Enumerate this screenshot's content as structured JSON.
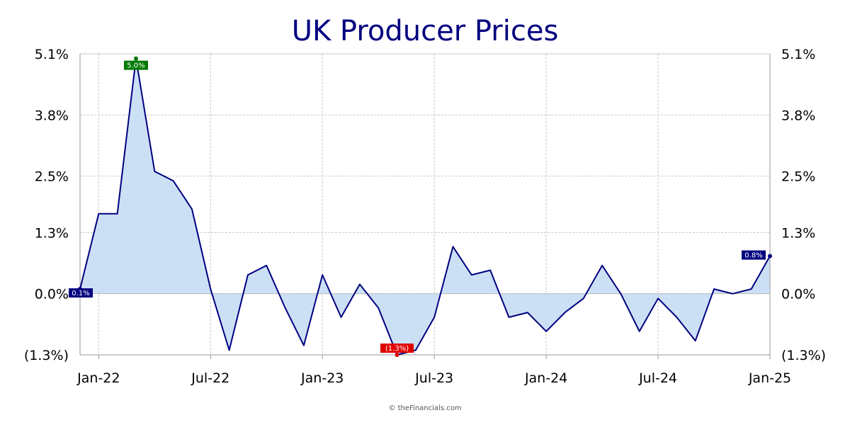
{
  "chart_data": {
    "type": "area",
    "title": "UK Producer Prices",
    "xlabel": "",
    "ylabel": "",
    "credit": "© theFinancials.com",
    "ylim": [
      -1.3,
      5.1
    ],
    "y_ticks": [
      5.1,
      3.8,
      2.5,
      1.3,
      0.0,
      -1.3
    ],
    "y_tick_labels": [
      "5.1%",
      "3.8%",
      "2.5%",
      "1.3%",
      "0.0%",
      "(1.3%)"
    ],
    "x_ticks": [
      "2022-01",
      "2022-07",
      "2023-01",
      "2023-07",
      "2024-01",
      "2024-07",
      "2025-01"
    ],
    "x_tick_labels": [
      "Jan-22",
      "Jul-22",
      "Jan-23",
      "Jul-23",
      "Jan-24",
      "Jul-24",
      "Jan-25"
    ],
    "grid": true,
    "colors": {
      "line": "#000080",
      "fill": "#cce0f5",
      "max": "#007a00",
      "min": "#e00000",
      "last": "#000080",
      "first": "#000080",
      "title": "#000080"
    },
    "x": [
      "2021-12",
      "2022-01",
      "2022-02",
      "2022-03",
      "2022-04",
      "2022-05",
      "2022-06",
      "2022-07",
      "2022-08",
      "2022-09",
      "2022-10",
      "2022-11",
      "2022-12",
      "2023-01",
      "2023-02",
      "2023-03",
      "2023-04",
      "2023-05",
      "2023-06",
      "2023-07",
      "2023-08",
      "2023-09",
      "2023-10",
      "2023-11",
      "2023-12",
      "2024-01",
      "2024-02",
      "2024-03",
      "2024-04",
      "2024-05",
      "2024-06",
      "2024-07",
      "2024-08",
      "2024-09",
      "2024-10",
      "2024-11",
      "2024-12",
      "2025-01"
    ],
    "values": [
      0.1,
      1.7,
      1.7,
      5.0,
      2.6,
      2.4,
      1.8,
      0.1,
      -1.2,
      0.4,
      0.6,
      -0.3,
      -1.1,
      0.4,
      -0.5,
      0.2,
      -0.3,
      -1.3,
      -1.2,
      -0.5,
      1.0,
      0.4,
      0.5,
      -0.5,
      -0.4,
      -0.8,
      -0.4,
      -0.1,
      0.6,
      0.0,
      -0.8,
      -0.1,
      -0.5,
      -1.0,
      0.1,
      0.0,
      0.1,
      0.8
    ],
    "annotations": [
      {
        "label": "0.1%",
        "index": 0,
        "kind": "first"
      },
      {
        "label": "5.0%",
        "index": 3,
        "kind": "max"
      },
      {
        "label": "(1.3%)",
        "index": 17,
        "kind": "min"
      },
      {
        "label": "0.8%",
        "index": 37,
        "kind": "last"
      }
    ]
  }
}
